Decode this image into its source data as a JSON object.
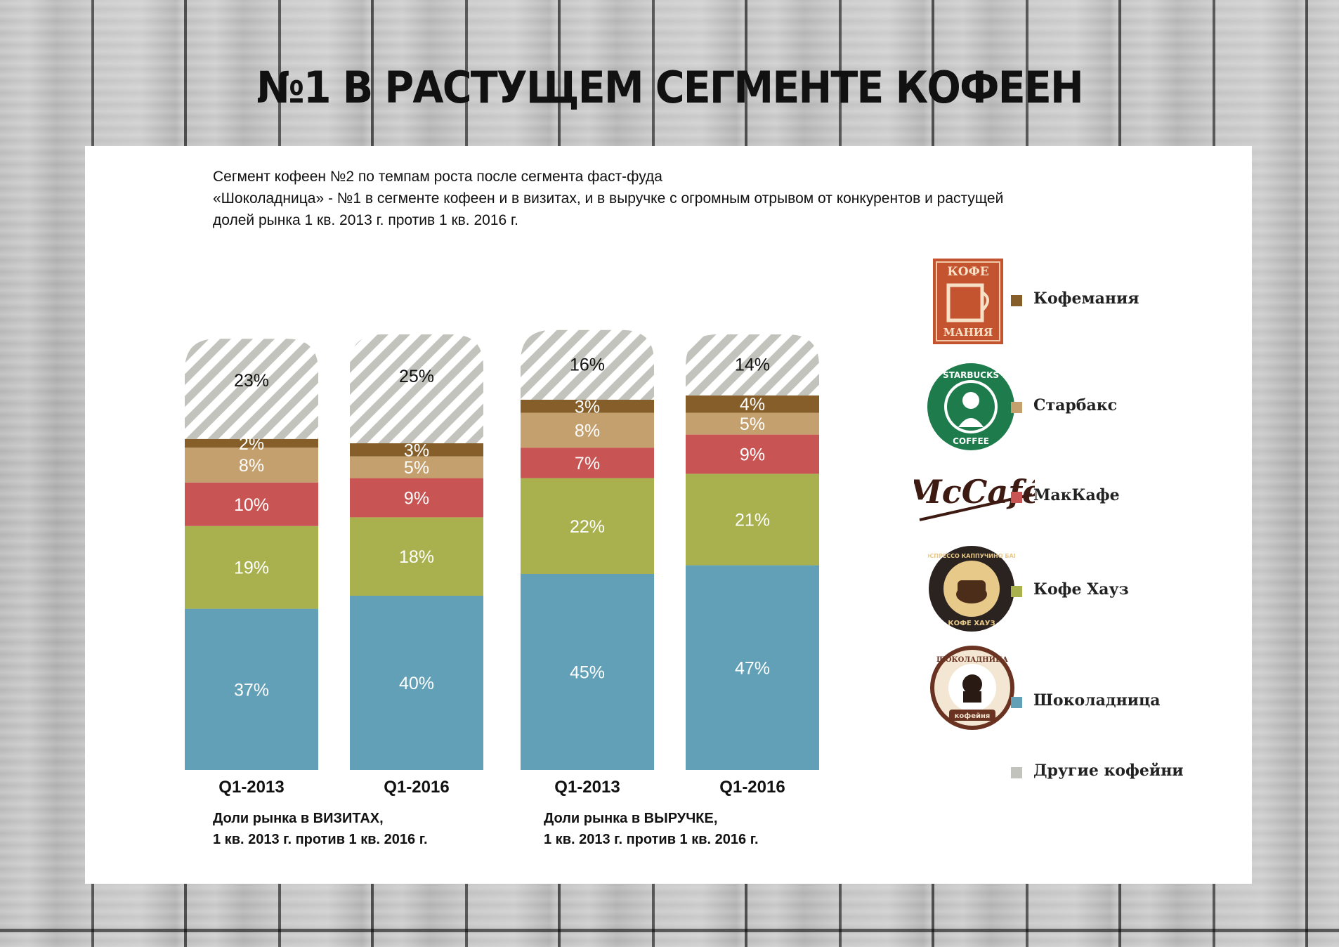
{
  "header": {
    "title": "№1 В РАСТУЩЕМ СЕГМЕНТЕ КОФЕЕН"
  },
  "intro": {
    "line1": "Сегмент кофеен №2 по темпам роста после сегмента фаст-фуда",
    "line2": "«Шоколадница» - №1 в сегменте кофеен и в визитах, и в выручке с огромным отрывом от конкурентов и растущей",
    "line3": "долей рынка 1 кв. 2013 г. против 1 кв. 2016 г."
  },
  "colors": {
    "Шоколадница": "#62a0b7",
    "Кофе Хауз": "#a8b14d",
    "МакКафе": "#c85454",
    "Старбакс": "#c4a06e",
    "Кофемания": "#855e2a",
    "Другие кофейни": "#c3c3bd"
  },
  "captions": {
    "visits_line1": "Доли рынка в ВИЗИТАХ,",
    "visits_line2": "1 кв. 2013 г. против 1 кв. 2016 г.",
    "revenue_line1": "Доли рынка в ВЫРУЧКЕ,",
    "revenue_line2": "1 кв. 2013 г. против 1 кв. 2016 г."
  },
  "legend": [
    {
      "label": "Кофемания",
      "logo": "kofemania-logo",
      "logo_text_top": "КОФЕ",
      "logo_text_bottom": "МАНИЯ"
    },
    {
      "label": "Старбакс",
      "logo": "starbucks-logo",
      "logo_text_top": "STARBUCKS",
      "logo_text_bottom": "COFFEE"
    },
    {
      "label": "МакКафе",
      "logo": "mccafe-logo",
      "logo_text_top": "McCafé",
      "logo_text_bottom": ""
    },
    {
      "label": "Кофе Хауз",
      "logo": "coffee-house-logo",
      "logo_text_top": "ЭСПРЕССО КАППУЧИНО БАР",
      "logo_text_bottom": "КОФЕ ХАУЗ"
    },
    {
      "label": "Шоколадница",
      "logo": "shokoladnitsa-logo",
      "logo_text_top": "ШОКОЛАДНИЦА",
      "logo_text_bottom": "кофейня"
    },
    {
      "label": "Другие кофейни",
      "logo": "",
      "logo_text_top": "",
      "logo_text_bottom": ""
    }
  ],
  "chart_data": [
    {
      "type": "bar",
      "stacked": true,
      "title": "Доли рынка в ВИЗИТАХ, 1 кв. 2013 г. против 1 кв. 2016 г.",
      "categories": [
        "Q1-2013",
        "Q1-2016"
      ],
      "series": [
        {
          "name": "Шоколадница",
          "values": [
            37,
            40
          ],
          "labels": [
            "37%",
            "40%"
          ]
        },
        {
          "name": "Кофе Хауз",
          "values": [
            19,
            18
          ],
          "labels": [
            "19%",
            "18%"
          ]
        },
        {
          "name": "МакКафе",
          "values": [
            10,
            9
          ],
          "labels": [
            "10%",
            "9%"
          ]
        },
        {
          "name": "Старбакс",
          "values": [
            8,
            5
          ],
          "labels": [
            "8%",
            "5%"
          ]
        },
        {
          "name": "Кофемания",
          "values": [
            2,
            3
          ],
          "labels": [
            "2%",
            "3%"
          ]
        },
        {
          "name": "Другие кофейни",
          "values": [
            23,
            25
          ],
          "labels": [
            "23%",
            "25%"
          ]
        }
      ],
      "ylim": [
        0,
        100
      ]
    },
    {
      "type": "bar",
      "stacked": true,
      "title": "Доли рынка в ВЫРУЧКЕ, 1 кв. 2013 г. против 1 кв. 2016 г.",
      "categories": [
        "Q1-2013",
        "Q1-2016"
      ],
      "series": [
        {
          "name": "Шоколадница",
          "values": [
            45,
            47
          ],
          "labels": [
            "45%",
            "47%"
          ]
        },
        {
          "name": "Кофе Хауз",
          "values": [
            22,
            21
          ],
          "labels": [
            "22%",
            "21%"
          ]
        },
        {
          "name": "МакКафе",
          "values": [
            7,
            9
          ],
          "labels": [
            "7%",
            "9%"
          ]
        },
        {
          "name": "Старбакс",
          "values": [
            8,
            5
          ],
          "labels": [
            "8%",
            "5%"
          ]
        },
        {
          "name": "Кофемания",
          "values": [
            3,
            4
          ],
          "labels": [
            "3%",
            "4%"
          ]
        },
        {
          "name": "Другие кофейни",
          "values": [
            16,
            14
          ],
          "labels": [
            "16%",
            "14%"
          ]
        }
      ],
      "ylim": [
        0,
        100
      ]
    }
  ]
}
